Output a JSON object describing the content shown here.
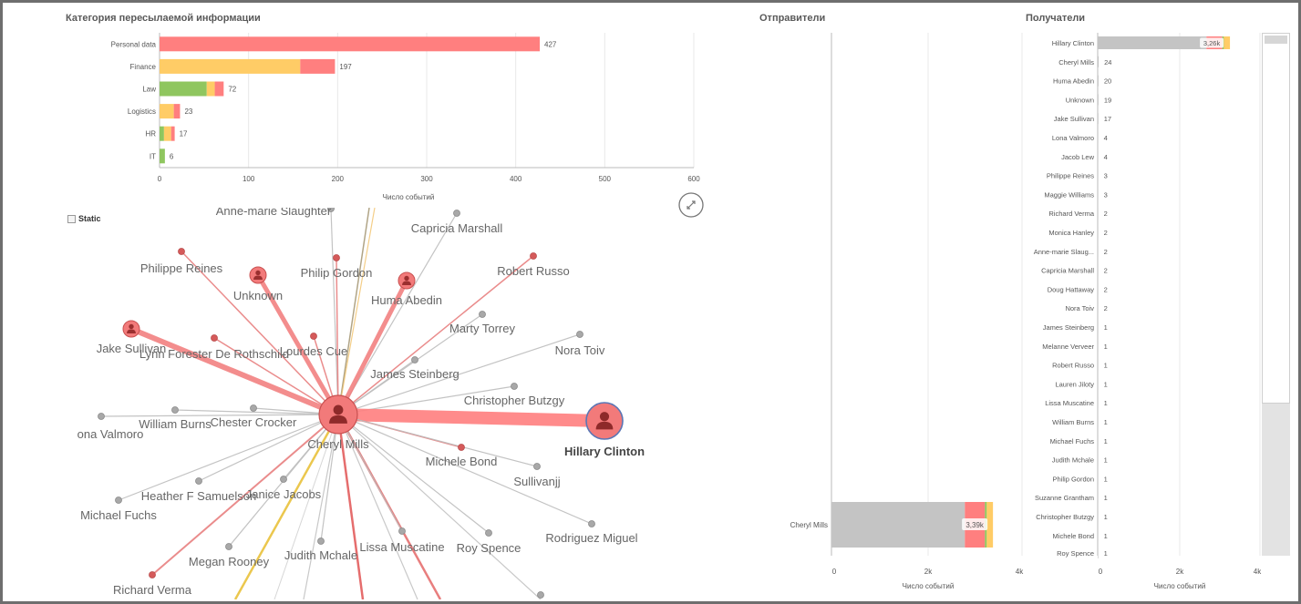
{
  "categories_panel": {
    "title": "Категория пересылаемой информации",
    "xlabel": "Число событий"
  },
  "senders_panel": {
    "title": "Отправители",
    "xlabel": "Число событий"
  },
  "recipients_panel": {
    "title": "Получатели",
    "xlabel": "Число событий"
  },
  "network_panel": {
    "static_label": "Static"
  },
  "colors": {
    "red": "#ff7f7f",
    "yellow": "#ffcc66",
    "green": "#8fc65f",
    "grey": "#c4c4c4"
  },
  "chart_data": [
    {
      "type": "bar",
      "orientation": "horizontal",
      "stacked": true,
      "title": "Категория пересылаемой информации",
      "xlabel": "Число событий",
      "categories": [
        "Personal data",
        "Finance",
        "Law",
        "Logistics",
        "HR",
        "IT"
      ],
      "totals": [
        427,
        197,
        72,
        23,
        17,
        6
      ],
      "series": [
        {
          "color": "green",
          "values": [
            0,
            0,
            53,
            0,
            5,
            6
          ]
        },
        {
          "color": "yellow",
          "values": [
            0,
            158,
            9,
            16,
            8,
            0
          ]
        },
        {
          "color": "red",
          "values": [
            427,
            39,
            10,
            7,
            4,
            0
          ]
        }
      ],
      "xlim": [
        0,
        600
      ],
      "xticks": [
        0,
        100,
        200,
        300,
        400,
        500,
        600
      ],
      "grid": true
    },
    {
      "type": "bar",
      "orientation": "horizontal",
      "stacked": true,
      "title": "Отправители",
      "xlabel": "Число событий",
      "categories": [
        "Cheryl Mills"
      ],
      "totals": [
        "3,39k"
      ],
      "series": [
        {
          "color": "grey",
          "values": [
            2800
          ]
        },
        {
          "color": "red",
          "values": [
            420
          ]
        },
        {
          "color": "green",
          "values": [
            40
          ]
        },
        {
          "color": "yellow",
          "values": [
            130
          ]
        }
      ],
      "xlim": [
        0,
        4000
      ],
      "xticks": [
        "0",
        "2k",
        "4k"
      ],
      "grid": true
    },
    {
      "type": "bar",
      "orientation": "horizontal",
      "title": "Получатели",
      "xlabel": "Число событий",
      "categories": [
        "Hillary Clinton",
        "Cheryl Mills",
        "Huma Abedin",
        "Unknown",
        "Jake Sullivan",
        "Lona Valmoro",
        "Jacob Lew",
        "Philippe Reines",
        "Maggie Williams",
        "Richard Verma",
        "Monica Hanley",
        "Anne-marie Slaug...",
        "Capricia Marshall",
        "Doug Hattaway",
        "Nora Toiv",
        "James Steinberg",
        "Melanne Verveer",
        "Robert Russo",
        "Lauren Jiloty",
        "Lissa Muscatine",
        "William Burns",
        "Michael Fuchs",
        "Judith Mchale",
        "Philip Gordon",
        "Suzanne Grantham",
        "Christopher Butzgy",
        "Michele Bond",
        "Roy Spence"
      ],
      "value_labels": [
        "3,26k",
        "24",
        "20",
        "19",
        "17",
        "4",
        "4",
        "3",
        "3",
        "2",
        "2",
        "2",
        "2",
        "2",
        "2",
        "1",
        "1",
        "1",
        "1",
        "1",
        "1",
        "1",
        "1",
        "1",
        "1",
        "1",
        "1",
        "1"
      ],
      "values": [
        3260,
        24,
        20,
        19,
        17,
        4,
        4,
        3,
        3,
        2,
        2,
        2,
        2,
        2,
        2,
        1,
        1,
        1,
        1,
        1,
        1,
        1,
        1,
        1,
        1,
        1,
        1,
        1
      ],
      "first_bar_series": [
        {
          "color": "grey",
          "values": [
            2680
          ]
        },
        {
          "color": "red",
          "values": [
            390
          ]
        },
        {
          "color": "green",
          "values": [
            40
          ]
        },
        {
          "color": "yellow",
          "values": [
            150
          ]
        }
      ],
      "xlim": [
        0,
        4000
      ],
      "xticks": [
        "0",
        "2k",
        "4k"
      ],
      "grid": true
    }
  ],
  "network_nodes": [
    {
      "label": "Anne-marie Slaughter",
      "type": "small-grey"
    },
    {
      "label": "Capricia Marshall",
      "type": "small-grey"
    },
    {
      "label": "Philippe Reines",
      "type": "small-red"
    },
    {
      "label": "Unknown",
      "type": "person-red"
    },
    {
      "label": "Philip Gordon",
      "type": "small-red"
    },
    {
      "label": "Huma Abedin",
      "type": "person-red"
    },
    {
      "label": "Robert Russo",
      "type": "small-red"
    },
    {
      "label": "Marty Torrey",
      "type": "small-grey"
    },
    {
      "label": "Nora Toiv",
      "type": "small-grey"
    },
    {
      "label": "Jake Sullivan",
      "type": "person-red"
    },
    {
      "label": "Lynn Forester De Rothschild",
      "type": "small-red"
    },
    {
      "label": "Lourdes Cue",
      "type": "small-red"
    },
    {
      "label": "James Steinberg",
      "type": "small-grey"
    },
    {
      "label": "Christopher Butzgy",
      "type": "small-grey"
    },
    {
      "label": "ona Valmoro",
      "type": "small-grey"
    },
    {
      "label": "William Burns",
      "type": "small-grey"
    },
    {
      "label": "Chester Crocker",
      "type": "small-grey"
    },
    {
      "label": "Cheryl Mills",
      "type": "hub"
    },
    {
      "label": "Hillary Clinton",
      "type": "person-big"
    },
    {
      "label": "Michele Bond",
      "type": "small-red"
    },
    {
      "label": "Sullivanjj",
      "type": "small-grey"
    },
    {
      "label": "Heather F Samuelson",
      "type": "small-grey"
    },
    {
      "label": "Janice Jacobs",
      "type": "small-grey"
    },
    {
      "label": "Michael Fuchs",
      "type": "small-grey"
    },
    {
      "label": "Megan Rooney",
      "type": "small-grey"
    },
    {
      "label": "Judith Mchale",
      "type": "small-grey"
    },
    {
      "label": "Lissa Muscatine",
      "type": "small-grey"
    },
    {
      "label": "Roy Spence",
      "type": "small-grey"
    },
    {
      "label": "Rodriguez Miguel",
      "type": "small-grey"
    },
    {
      "label": "Richard Verma",
      "type": "small-red"
    }
  ]
}
